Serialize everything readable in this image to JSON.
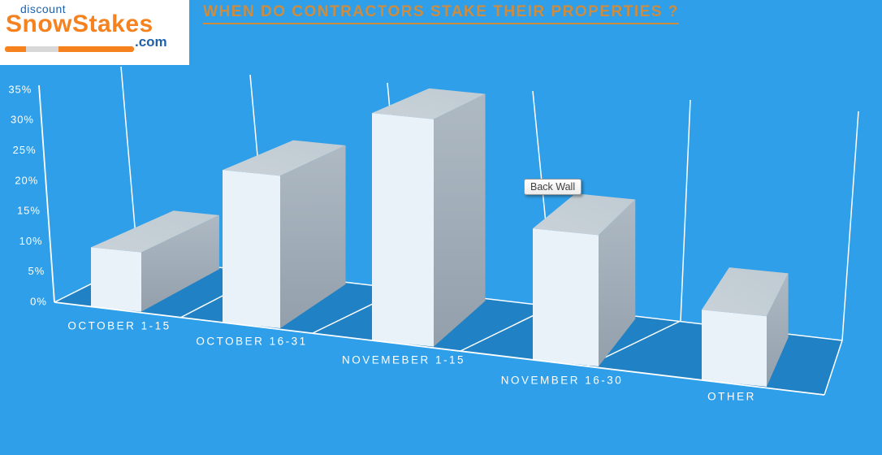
{
  "header": {
    "title": "WHEN DO CONTRACTORS STAKE THEIR PROPERTIES ?"
  },
  "logo": {
    "top_word": "discount",
    "brand": "SnowStakes",
    "domain_suffix": ".com"
  },
  "tooltip": {
    "label": "Back Wall"
  },
  "colors": {
    "background": "#2E9FE8",
    "floor": "#2081C4",
    "title_text": "#CE8C3F",
    "logo_blue": "#1E62AC",
    "logo_orange": "#F5821F",
    "bar_front": "#E9F1F9",
    "bar_top": "#BFCAD2",
    "bar_side_top": "#AEB9C3",
    "bar_side_bottom": "#93A0AC",
    "axis_text": "#FFFFFF",
    "grid_line": "#FFFFFF"
  },
  "chart_data": {
    "type": "bar",
    "projection": "3d-perspective",
    "title": "WHEN DO CONTRACTORS STAKE THEIR PROPERTIES ?",
    "categories": [
      "OCTOBER 1-15",
      "OCTOBER 16-31",
      "NOVEMEBER 1-15",
      "NOVEMBER 16-30",
      "OTHER"
    ],
    "values": [
      10,
      23,
      31,
      16,
      8
    ],
    "unit": "%",
    "xlabel": "",
    "ylabel": "",
    "ylim": [
      0,
      35
    ],
    "ytick_step": 5,
    "ytick_labels": [
      "0%",
      "5%",
      "10%",
      "15%",
      "20%",
      "25%",
      "30%",
      "35%"
    ],
    "legend": "none",
    "gridlines": "vertical category separators on back wall and floor",
    "annotations": [
      {
        "kind": "hover-tooltip",
        "text": "Back Wall"
      }
    ]
  }
}
